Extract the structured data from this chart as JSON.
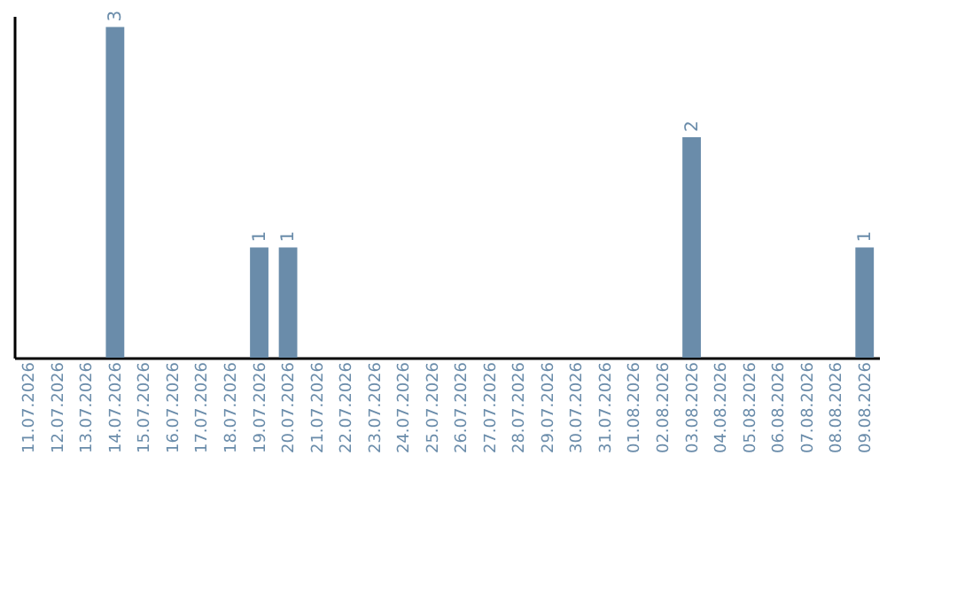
{
  "chart_data": {
    "type": "bar",
    "categories": [
      "11.07.2026",
      "12.07.2026",
      "13.07.2026",
      "14.07.2026",
      "15.07.2026",
      "16.07.2026",
      "17.07.2026",
      "18.07.2026",
      "19.07.2026",
      "20.07.2026",
      "21.07.2026",
      "22.07.2026",
      "23.07.2026",
      "24.07.2026",
      "25.07.2026",
      "26.07.2026",
      "27.07.2026",
      "28.07.2026",
      "29.07.2026",
      "30.07.2026",
      "31.07.2026",
      "01.08.2026",
      "02.08.2026",
      "03.08.2026",
      "04.08.2026",
      "05.08.2026",
      "06.08.2026",
      "07.08.2026",
      "08.08.2026",
      "09.08.2026"
    ],
    "values": [
      0,
      0,
      0,
      3,
      0,
      0,
      0,
      0,
      1,
      1,
      0,
      0,
      0,
      0,
      0,
      0,
      0,
      0,
      0,
      0,
      0,
      0,
      0,
      2,
      0,
      0,
      0,
      0,
      0,
      1
    ],
    "value_labels": [
      null,
      null,
      null,
      "3",
      null,
      null,
      null,
      null,
      "1",
      "1",
      null,
      null,
      null,
      null,
      null,
      null,
      null,
      null,
      null,
      null,
      null,
      null,
      null,
      "2",
      null,
      null,
      null,
      null,
      null,
      "1"
    ],
    "color": "#6a8caa",
    "ylim": [
      0,
      3.1
    ],
    "tick_labels": "x",
    "grid": false
  }
}
